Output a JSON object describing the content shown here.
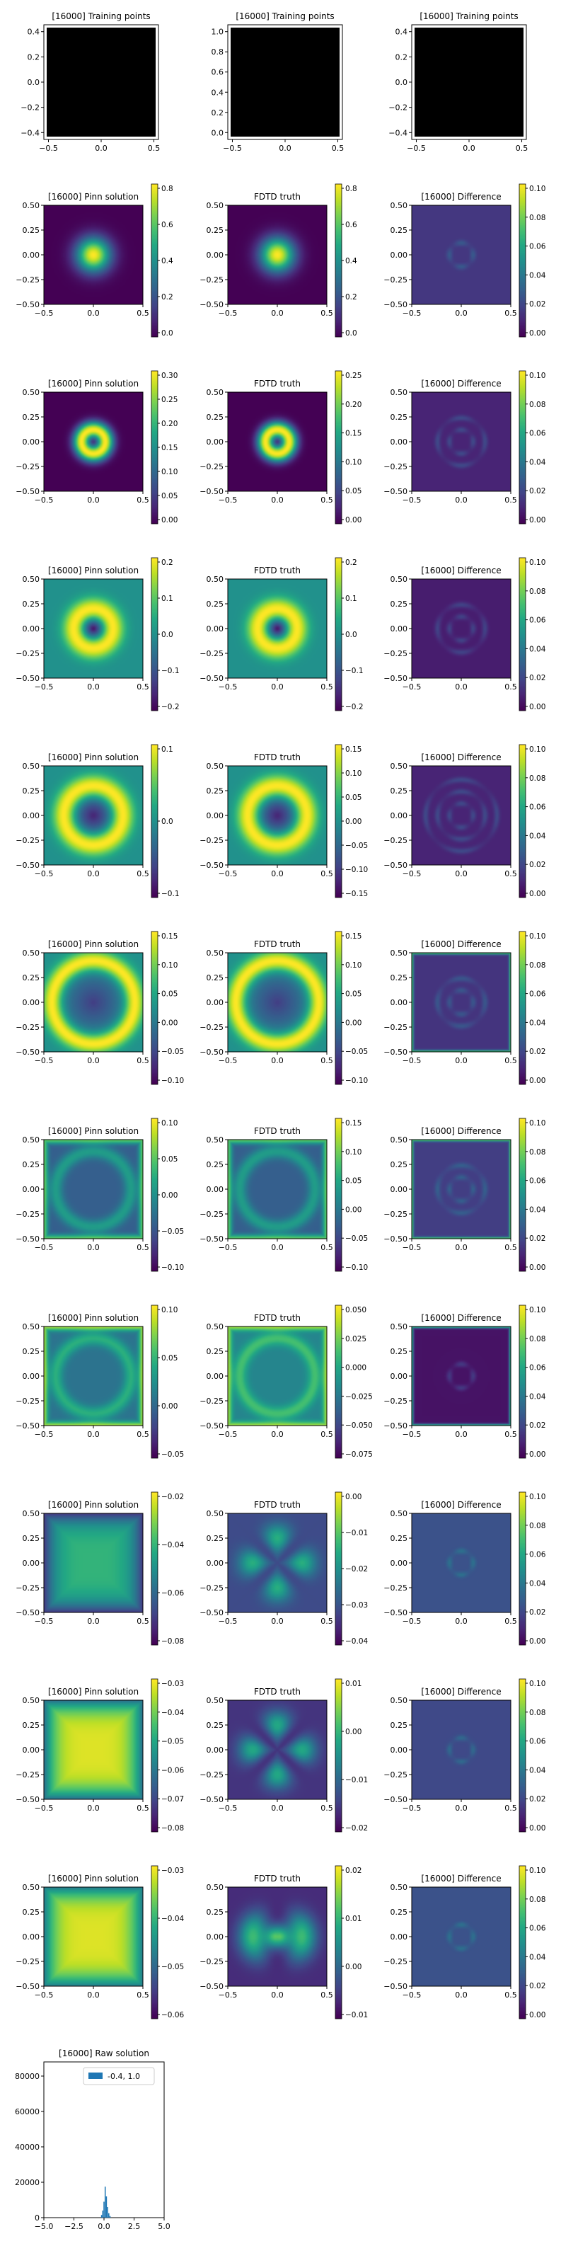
{
  "figure": {
    "step": "[16000]"
  },
  "colors": {
    "viridis": [
      "#440154",
      "#482475",
      "#414487",
      "#355f8d",
      "#2a788e",
      "#21918c",
      "#22a884",
      "#44bf70",
      "#7ad151",
      "#bddf26",
      "#fde725"
    ],
    "training_fill": "#000000",
    "histogram_bar": "#1f77b4"
  },
  "chart_data": [
    {
      "type": "heatmap",
      "kind": "training",
      "title": "[16000] Training points",
      "xlim": [
        -0.5,
        0.5
      ],
      "ylim": [
        -0.5,
        0.5
      ],
      "xticks": [
        "−0.5",
        "0.0",
        "0.5"
      ],
      "yticks": [
        "0.4",
        "0.2",
        "0.0",
        "−0.2",
        "−0.4"
      ]
    },
    {
      "type": "heatmap",
      "kind": "training",
      "title": "[16000] Training points",
      "xlim": [
        -0.5,
        0.5
      ],
      "ylim": [
        0,
        1
      ],
      "xticks": [
        "−0.5",
        "0.0",
        "0.5"
      ],
      "yticks": [
        "1.0",
        "0.8",
        "0.6",
        "0.4",
        "0.2",
        "0.0"
      ]
    },
    {
      "type": "heatmap",
      "kind": "training",
      "title": "[16000] Training points",
      "xlim": [
        -0.5,
        0.5
      ],
      "ylim": [
        -0.5,
        0.5
      ],
      "xticks": [
        "−0.5",
        "0.0",
        "0.5"
      ],
      "yticks": [
        "0.4",
        "0.2",
        "0.0",
        "−0.2",
        "−0.4"
      ]
    },
    {
      "type": "heatmap",
      "title": "[16000] Pinn solution",
      "pattern": "blob",
      "params": {
        "sigma": 0.12
      },
      "xticks": [
        "−0.5",
        "0.0",
        "0.5"
      ],
      "yticks": [
        "0.50",
        "0.25",
        "0.00",
        "−0.25",
        "−0.50"
      ],
      "colorbar": [
        "0.8",
        "0.6",
        "0.4",
        "0.2",
        "0.0"
      ],
      "clim": [
        0,
        0.95
      ]
    },
    {
      "type": "heatmap",
      "title": "FDTD truth",
      "pattern": "blob",
      "params": {
        "sigma": 0.12
      },
      "xticks": [
        "−0.5",
        "0.0",
        "0.5"
      ],
      "yticks": [
        "0.50",
        "0.25",
        "0.00",
        "−0.25",
        "−0.50"
      ],
      "colorbar": [
        "0.8",
        "0.6",
        "0.4",
        "0.2",
        "0.0"
      ],
      "clim": [
        0,
        0.95
      ]
    },
    {
      "type": "heatmap",
      "title": "[16000] Difference",
      "pattern": "diff",
      "params": {
        "level": 0.16,
        "rings": 1
      },
      "xticks": [
        "−0.5",
        "0.0",
        "0.5"
      ],
      "yticks": [
        "0.50",
        "0.25",
        "0.00",
        "−0.25",
        "−0.50"
      ],
      "colorbar": [
        "0.10",
        "0.08",
        "0.06",
        "0.04",
        "0.02",
        "0.00"
      ],
      "clim": [
        0,
        0.1
      ]
    },
    {
      "type": "heatmap",
      "title": "[16000] Pinn solution",
      "pattern": "ring",
      "params": {
        "r": 0.12,
        "w": 0.06
      },
      "xticks": [
        "−0.5",
        "0.0",
        "0.5"
      ],
      "yticks": [
        "0.50",
        "0.25",
        "0.00",
        "−0.25",
        "−0.50"
      ],
      "colorbar": [
        "0.30",
        "0.25",
        "0.20",
        "0.15",
        "0.10",
        "0.05",
        "0.00"
      ],
      "clim": [
        0,
        0.32
      ]
    },
    {
      "type": "heatmap",
      "title": "FDTD truth",
      "pattern": "ring",
      "params": {
        "r": 0.12,
        "w": 0.06
      },
      "xticks": [
        "−0.5",
        "0.0",
        "0.5"
      ],
      "yticks": [
        "0.50",
        "0.25",
        "0.00",
        "−0.25",
        "−0.50"
      ],
      "colorbar": [
        "0.25",
        "0.20",
        "0.15",
        "0.10",
        "0.05",
        "0.00"
      ],
      "clim": [
        0,
        0.29
      ]
    },
    {
      "type": "heatmap",
      "title": "[16000] Difference",
      "pattern": "diff",
      "params": {
        "level": 0.1,
        "rings": 2
      },
      "xticks": [
        "−0.5",
        "0.0",
        "0.5"
      ],
      "yticks": [
        "0.50",
        "0.25",
        "0.00",
        "−0.25",
        "−0.50"
      ],
      "colorbar": [
        "0.10",
        "0.08",
        "0.06",
        "0.04",
        "0.02",
        "0.00"
      ],
      "clim": [
        0,
        0.1
      ]
    },
    {
      "type": "heatmap",
      "title": "[16000] Pinn solution",
      "pattern": "wave",
      "params": {
        "r": 0.2,
        "w": 0.08,
        "bg": 0.5,
        "core": 0
      },
      "xticks": [
        "−0.5",
        "0.0",
        "0.5"
      ],
      "yticks": [
        "0.50",
        "0.25",
        "0.00",
        "−0.25",
        "−0.50"
      ],
      "colorbar": [
        "0.2",
        "0.1",
        "0.0",
        "−0.1",
        "−0.2"
      ],
      "clim": [
        -0.25,
        0.25
      ]
    },
    {
      "type": "heatmap",
      "title": "FDTD truth",
      "pattern": "wave",
      "params": {
        "r": 0.2,
        "w": 0.08,
        "bg": 0.5,
        "core": 0
      },
      "xticks": [
        "−0.5",
        "0.0",
        "0.5"
      ],
      "yticks": [
        "0.50",
        "0.25",
        "0.00",
        "−0.25",
        "−0.50"
      ],
      "colorbar": [
        "0.2",
        "0.1",
        "0.0",
        "−0.1",
        "−0.2"
      ],
      "clim": [
        -0.25,
        0.25
      ]
    },
    {
      "type": "heatmap",
      "title": "[16000] Difference",
      "pattern": "diff",
      "params": {
        "level": 0.08,
        "rings": 2
      },
      "xticks": [
        "−0.5",
        "0.0",
        "0.5"
      ],
      "yticks": [
        "0.50",
        "0.25",
        "0.00",
        "−0.25",
        "−0.50"
      ],
      "colorbar": [
        "0.10",
        "0.08",
        "0.06",
        "0.04",
        "0.02",
        "0.00"
      ],
      "clim": [
        0,
        0.1
      ]
    },
    {
      "type": "heatmap",
      "title": "[16000] Pinn solution",
      "pattern": "wave",
      "params": {
        "r": 0.3,
        "w": 0.08,
        "bg": 0.5,
        "core": 0.1
      },
      "xticks": [
        "−0.5",
        "0.0",
        "0.5"
      ],
      "yticks": [
        "0.50",
        "0.25",
        "0.00",
        "−0.25",
        "−0.50"
      ],
      "colorbar": [
        "0.1",
        "0.0",
        "−0.1"
      ],
      "clim": [
        -0.15,
        0.17
      ]
    },
    {
      "type": "heatmap",
      "title": "FDTD truth",
      "pattern": "wave",
      "params": {
        "r": 0.3,
        "w": 0.08,
        "bg": 0.5,
        "core": 0.1
      },
      "xticks": [
        "−0.5",
        "0.0",
        "0.5"
      ],
      "yticks": [
        "0.50",
        "0.25",
        "0.00",
        "−0.25",
        "−0.50"
      ],
      "colorbar": [
        "0.15",
        "0.10",
        "0.05",
        "0.00",
        "−0.05",
        "−0.10",
        "−0.15"
      ],
      "clim": [
        -0.17,
        0.18
      ]
    },
    {
      "type": "heatmap",
      "title": "[16000] Difference",
      "pattern": "diff",
      "params": {
        "level": 0.1,
        "rings": 3
      },
      "xticks": [
        "−0.5",
        "0.0",
        "0.5"
      ],
      "yticks": [
        "0.50",
        "0.25",
        "0.00",
        "−0.25",
        "−0.50"
      ],
      "colorbar": [
        "0.10",
        "0.08",
        "0.06",
        "0.04",
        "0.02",
        "0.00"
      ],
      "clim": [
        0,
        0.1
      ]
    },
    {
      "type": "heatmap",
      "title": "[16000] Pinn solution",
      "pattern": "wave",
      "params": {
        "r": 0.42,
        "w": 0.07,
        "bg": 0.5,
        "core": 0.18
      },
      "xticks": [
        "−0.5",
        "0.0",
        "0.5"
      ],
      "yticks": [
        "0.50",
        "0.25",
        "0.00",
        "−0.25",
        "−0.50"
      ],
      "colorbar": [
        "0.15",
        "0.10",
        "0.05",
        "0.00",
        "−0.05",
        "−0.10"
      ],
      "clim": [
        -0.12,
        0.16
      ]
    },
    {
      "type": "heatmap",
      "title": "FDTD truth",
      "pattern": "wave",
      "params": {
        "r": 0.42,
        "w": 0.07,
        "bg": 0.5,
        "core": 0.18
      },
      "xticks": [
        "−0.5",
        "0.0",
        "0.5"
      ],
      "yticks": [
        "0.50",
        "0.25",
        "0.00",
        "−0.25",
        "−0.50"
      ],
      "colorbar": [
        "0.15",
        "0.10",
        "0.05",
        "0.00",
        "−0.05",
        "−0.10"
      ],
      "clim": [
        -0.12,
        0.17
      ]
    },
    {
      "type": "heatmap",
      "title": "[16000] Difference",
      "pattern": "diff",
      "params": {
        "level": 0.15,
        "rings": 2,
        "edge": true
      },
      "xticks": [
        "−0.5",
        "0.0",
        "0.5"
      ],
      "yticks": [
        "0.50",
        "0.25",
        "0.00",
        "−0.25",
        "−0.50"
      ],
      "colorbar": [
        "0.10",
        "0.08",
        "0.06",
        "0.04",
        "0.02",
        "0.00"
      ],
      "clim": [
        0,
        0.1
      ]
    },
    {
      "type": "heatmap",
      "title": "[16000] Pinn solution",
      "pattern": "edge",
      "params": {
        "inner": 0.3,
        "edgeV": 0.75
      },
      "xticks": [
        "−0.5",
        "0.0",
        "0.5"
      ],
      "yticks": [
        "0.50",
        "0.25",
        "0.00",
        "−0.25",
        "−0.50"
      ],
      "colorbar": [
        "0.10",
        "0.05",
        "0.00",
        "−0.05",
        "−0.10"
      ],
      "clim": [
        -0.11,
        0.12
      ]
    },
    {
      "type": "heatmap",
      "title": "FDTD truth",
      "pattern": "edge",
      "params": {
        "inner": 0.3,
        "edgeV": 0.75
      },
      "xticks": [
        "−0.5",
        "0.0",
        "0.5"
      ],
      "yticks": [
        "0.50",
        "0.25",
        "0.00",
        "−0.25",
        "−0.50"
      ],
      "colorbar": [
        "0.15",
        "0.10",
        "0.05",
        "0.00",
        "−0.05",
        "−0.10"
      ],
      "clim": [
        -0.11,
        0.16
      ]
    },
    {
      "type": "heatmap",
      "title": "[16000] Difference",
      "pattern": "diff",
      "params": {
        "level": 0.18,
        "rings": 2,
        "edge": true
      },
      "xticks": [
        "−0.5",
        "0.0",
        "0.5"
      ],
      "yticks": [
        "0.50",
        "0.25",
        "0.00",
        "−0.25",
        "−0.50"
      ],
      "colorbar": [
        "0.10",
        "0.08",
        "0.06",
        "0.04",
        "0.02",
        "0.00"
      ],
      "clim": [
        0,
        0.1
      ]
    },
    {
      "type": "heatmap",
      "title": "[16000] Pinn solution",
      "pattern": "edge",
      "params": {
        "inner": 0.38,
        "edgeV": 0.85
      },
      "xticks": [
        "−0.5",
        "0.0",
        "0.5"
      ],
      "yticks": [
        "0.50",
        "0.25",
        "0.00",
        "−0.25",
        "−0.50"
      ],
      "colorbar": [
        "0.10",
        "0.05",
        "0.00",
        "−0.05"
      ],
      "clim": [
        -0.07,
        0.12
      ]
    },
    {
      "type": "heatmap",
      "title": "FDTD truth",
      "pattern": "edge",
      "params": {
        "inner": 0.45,
        "edgeV": 0.85
      },
      "xticks": [
        "−0.5",
        "0.0",
        "0.5"
      ],
      "yticks": [
        "0.50",
        "0.25",
        "0.00",
        "−0.25",
        "−0.50"
      ],
      "colorbar": [
        "0.050",
        "0.025",
        "0.000",
        "−0.025",
        "−0.050",
        "−0.075"
      ],
      "clim": [
        -0.085,
        0.065
      ]
    },
    {
      "type": "heatmap",
      "title": "[16000] Difference",
      "pattern": "diff",
      "params": {
        "level": 0.05,
        "rings": 1,
        "edge": true
      },
      "xticks": [
        "−0.5",
        "0.0",
        "0.5"
      ],
      "yticks": [
        "0.50",
        "0.25",
        "0.00",
        "−0.25",
        "−0.50"
      ],
      "colorbar": [
        "0.10",
        "0.08",
        "0.06",
        "0.04",
        "0.02",
        "0.00"
      ],
      "clim": [
        0,
        0.1
      ]
    },
    {
      "type": "heatmap",
      "title": "[16000] Pinn solution",
      "pattern": "plateau",
      "params": {
        "center": 0.65,
        "edgeV": 0.15
      },
      "xticks": [
        "−0.5",
        "0.0",
        "0.5"
      ],
      "yticks": [
        "0.50",
        "0.25",
        "0.00",
        "−0.25",
        "−0.50"
      ],
      "colorbar": [
        "−0.02",
        "−0.04",
        "−0.06",
        "−0.08"
      ],
      "clim": [
        -0.09,
        -0.01
      ]
    },
    {
      "type": "heatmap",
      "title": "FDTD truth",
      "pattern": "lobes",
      "params": {
        "base": 0.45,
        "amp": 0.4,
        "k": 2
      },
      "xticks": [
        "−0.5",
        "0.0",
        "0.5"
      ],
      "yticks": [
        "0.50",
        "0.25",
        "0.00",
        "−0.25",
        "−0.50"
      ],
      "colorbar": [
        "0.00",
        "−0.01",
        "−0.02",
        "−0.03",
        "−0.04"
      ],
      "clim": [
        -0.05,
        0.0
      ]
    },
    {
      "type": "heatmap",
      "title": "[16000] Difference",
      "pattern": "diff",
      "params": {
        "level": 0.25,
        "rings": 1
      },
      "xticks": [
        "−0.5",
        "0.0",
        "0.5"
      ],
      "yticks": [
        "0.50",
        "0.25",
        "0.00",
        "−0.25",
        "−0.50"
      ],
      "colorbar": [
        "0.10",
        "0.08",
        "0.06",
        "0.04",
        "0.02",
        "0.00"
      ],
      "clim": [
        0,
        0.1
      ]
    },
    {
      "type": "heatmap",
      "title": "[16000] Pinn solution",
      "pattern": "plateau",
      "params": {
        "center": 0.95,
        "edgeV": 0.35
      },
      "xticks": [
        "−0.5",
        "0.0",
        "0.5"
      ],
      "yticks": [
        "0.50",
        "0.25",
        "0.00",
        "−0.25",
        "−0.50"
      ],
      "colorbar": [
        "−0.03",
        "−0.04",
        "−0.05",
        "−0.06",
        "−0.07",
        "−0.08"
      ],
      "clim": [
        -0.086,
        -0.028
      ]
    },
    {
      "type": "heatmap",
      "title": "FDTD truth",
      "pattern": "lobes",
      "params": {
        "base": 0.3,
        "amp": 0.45,
        "k": 2
      },
      "xticks": [
        "−0.5",
        "0.0",
        "0.5"
      ],
      "yticks": [
        "0.50",
        "0.25",
        "0.00",
        "−0.25",
        "−0.50"
      ],
      "colorbar": [
        "0.01",
        "0.00",
        "−0.01",
        "−0.02"
      ],
      "clim": [
        -0.025,
        0.015
      ]
    },
    {
      "type": "heatmap",
      "title": "[16000] Difference",
      "pattern": "diff",
      "params": {
        "level": 0.22,
        "rings": 1
      },
      "xticks": [
        "−0.5",
        "0.0",
        "0.5"
      ],
      "yticks": [
        "0.50",
        "0.25",
        "0.00",
        "−0.25",
        "−0.50"
      ],
      "colorbar": [
        "0.10",
        "0.08",
        "0.06",
        "0.04",
        "0.02",
        "0.00"
      ],
      "clim": [
        0,
        0.1
      ]
    },
    {
      "type": "heatmap",
      "title": "[16000] Pinn solution",
      "pattern": "plateau",
      "params": {
        "center": 0.95,
        "edgeV": 0.4
      },
      "xticks": [
        "−0.5",
        "0.0",
        "0.5"
      ],
      "yticks": [
        "0.50",
        "0.25",
        "0.00",
        "−0.25",
        "−0.50"
      ],
      "colorbar": [
        "−0.03",
        "−0.04",
        "−0.05",
        "−0.06"
      ],
      "clim": [
        -0.065,
        -0.025
      ]
    },
    {
      "type": "heatmap",
      "title": "FDTD truth",
      "pattern": "lobes",
      "params": {
        "base": 0.25,
        "amp": 0.55,
        "k": 1
      },
      "xticks": [
        "−0.5",
        "0.0",
        "0.5"
      ],
      "yticks": [
        "0.50",
        "0.25",
        "0.00",
        "−0.25",
        "−0.50"
      ],
      "colorbar": [
        "0.02",
        "0.01",
        "0.00",
        "−0.01"
      ],
      "clim": [
        -0.015,
        0.025
      ]
    },
    {
      "type": "heatmap",
      "title": "[16000] Difference",
      "pattern": "diff",
      "params": {
        "level": 0.25,
        "rings": 1
      },
      "xticks": [
        "−0.5",
        "0.0",
        "0.5"
      ],
      "yticks": [
        "0.50",
        "0.25",
        "0.00",
        "−0.25",
        "−0.50"
      ],
      "colorbar": [
        "0.10",
        "0.08",
        "0.06",
        "0.04",
        "0.02",
        "0.00"
      ],
      "clim": [
        0,
        0.1
      ]
    },
    {
      "type": "bar",
      "title": "[16000] Raw solution",
      "legend": "-0.4, 1.0",
      "xlim": [
        -5,
        5
      ],
      "ylim": [
        0,
        88000
      ],
      "xticks": [
        "−5.0",
        "−2.5",
        "0.0",
        "2.5",
        "5.0"
      ],
      "yticks": [
        "80000",
        "60000",
        "40000",
        "20000",
        "0"
      ],
      "x": [
        -0.2,
        -0.1,
        0.0,
        0.1,
        0.2,
        0.3,
        0.4,
        0.5
      ],
      "values": [
        1500,
        4000,
        9000,
        17500,
        12000,
        6000,
        2500,
        900
      ]
    }
  ]
}
